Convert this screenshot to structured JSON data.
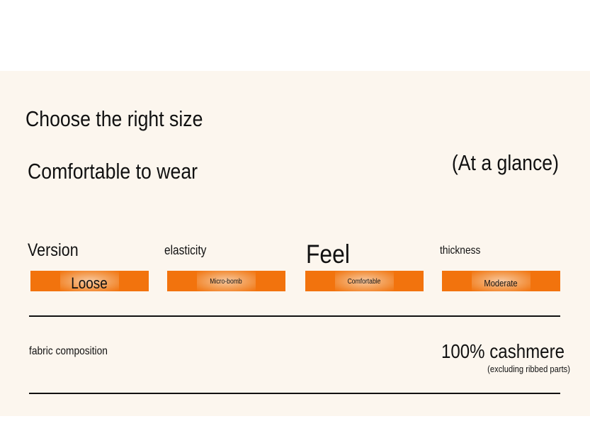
{
  "header": {
    "title": "Choose the right size",
    "subtitle": "Comfortable to wear",
    "note": "(At a glance)"
  },
  "attributes": [
    {
      "label": "Version",
      "value": "Loose"
    },
    {
      "label": "elasticity",
      "value": "Micro-bomb"
    },
    {
      "label": "Feel",
      "value": "Comfortable"
    },
    {
      "label": "thickness",
      "value": "Moderate"
    }
  ],
  "fabric": {
    "label": "fabric composition",
    "value": "100% cashmere",
    "note": "(excluding ribbed parts)"
  }
}
